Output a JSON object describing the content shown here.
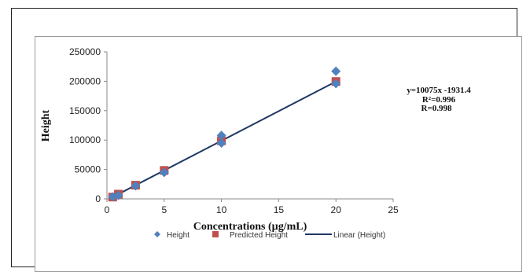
{
  "chart_data": {
    "type": "scatter",
    "xlabel": "Concentrations (µg/mL)",
    "ylabel": "Height",
    "xlim": [
      0,
      25
    ],
    "ylim": [
      0,
      250000
    ],
    "x_ticks": [
      "0",
      "5",
      "10",
      "15",
      "20",
      "25"
    ],
    "y_ticks": [
      "0",
      "50000",
      "100000",
      "150000",
      "200000",
      "250000"
    ],
    "grid": false,
    "legend_position": "bottom",
    "series": [
      {
        "name": "Height",
        "marker": "diamond",
        "color": "#4f81bd",
        "points": [
          {
            "x": 0.5,
            "y": 3500
          },
          {
            "x": 1,
            "y": 6000
          },
          {
            "x": 2.5,
            "y": 22000
          },
          {
            "x": 5,
            "y": 45000
          },
          {
            "x": 10,
            "y": 95000
          },
          {
            "x": 10,
            "y": 108000
          },
          {
            "x": 20,
            "y": 196000
          },
          {
            "x": 20,
            "y": 217000
          }
        ]
      },
      {
        "name": "Predicted Height",
        "marker": "square",
        "color": "#c0504d",
        "points": [
          {
            "x": 0.5,
            "y": 3100
          },
          {
            "x": 1,
            "y": 8100
          },
          {
            "x": 2.5,
            "y": 23300
          },
          {
            "x": 5,
            "y": 48400
          },
          {
            "x": 10,
            "y": 98800
          },
          {
            "x": 20,
            "y": 199600
          }
        ]
      },
      {
        "name": "Linear (Height)",
        "type": "line",
        "color": "#1f3864",
        "slope": 10075,
        "intercept": -1931.4,
        "x_range": [
          0.5,
          20
        ]
      }
    ],
    "annotations": [
      "y=10075x -1931.4",
      "R²=0.996",
      "R=0.998"
    ]
  }
}
